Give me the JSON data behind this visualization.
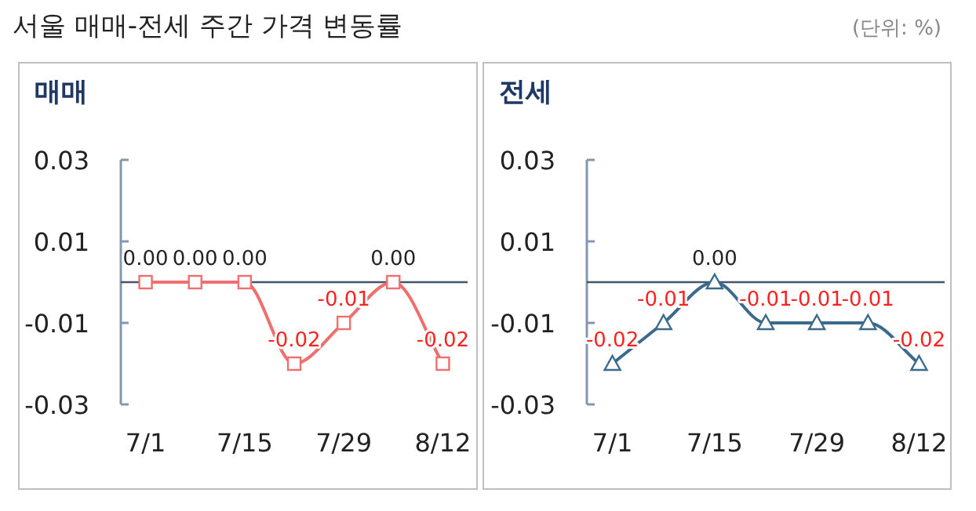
{
  "chart_data": [
    {
      "type": "line",
      "title": "서울 매매-전세 주간 가격 변동률",
      "subtitle": "매매",
      "categories": [
        "7/1",
        null,
        "7/15",
        null,
        "7/29",
        null,
        "8/12"
      ],
      "series": [
        {
          "color": "#f06e6e",
          "values": [
            0.0,
            0.0,
            0.0,
            -0.02,
            -0.01,
            0.0,
            -0.02
          ],
          "value_labels": [
            "0.00",
            "0.00",
            "0.00",
            "-0.02",
            "-0.01",
            "0.00",
            "-0.02"
          ]
        }
      ],
      "ylim": [
        -0.03,
        0.03
      ],
      "yticks": [
        0.03,
        0.01,
        -0.01,
        -0.03
      ],
      "marker": "square",
      "ref_lines": [
        {
          "axis": "y",
          "value": 0,
          "color": "#44546a"
        }
      ]
    },
    {
      "type": "line",
      "title": "전세",
      "annotations": [
        "(단위: %)"
      ],
      "categories": [
        "7/1",
        null,
        "7/15",
        null,
        "7/29",
        null,
        "8/12"
      ],
      "series": [
        {
          "color": "#3b6a8c",
          "values": [
            -0.02,
            -0.01,
            0.0,
            -0.01,
            -0.01,
            -0.01,
            -0.02
          ],
          "value_labels": [
            "-0.02",
            "-0.01",
            "0.00",
            "-0.01",
            "-0.01",
            "-0.01",
            "-0.02"
          ]
        }
      ],
      "ylim": [
        -0.03,
        0.03
      ],
      "yticks": [
        0.03,
        0.01,
        -0.01,
        -0.03
      ],
      "marker": "triangle",
      "ref_lines": [
        {
          "axis": "y",
          "value": 0,
          "color": "#44546a"
        }
      ]
    }
  ]
}
